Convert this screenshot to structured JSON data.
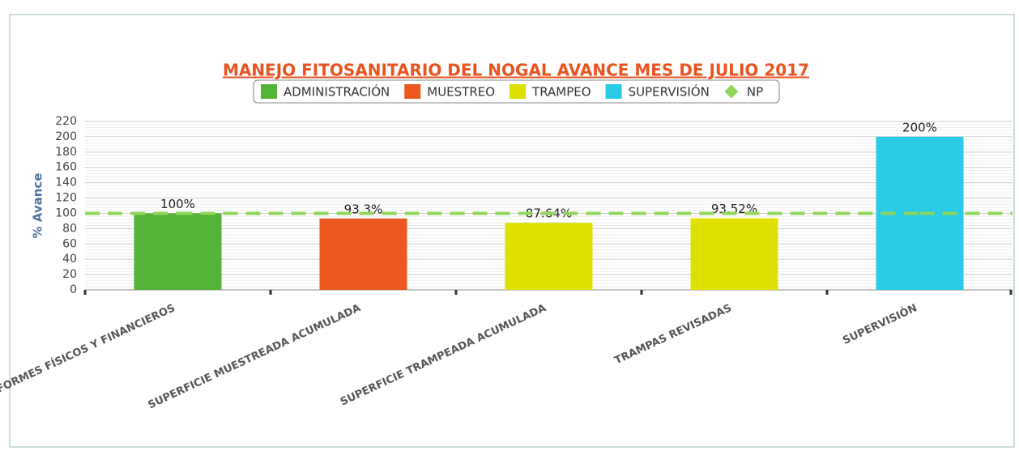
{
  "chart_data": {
    "type": "bar",
    "title": "MANEJO FITOSANITARIO DEL NOGAL AVANCE MES DE JULIO 2017",
    "y_label": "% Avance",
    "categories": [
      "INFORMES FÍSICOS Y FINANCIEROS",
      "SUPERFICIE MUESTREADA ACUMULADA",
      "SUPERFICIE TRAMPEADA ACUMULADA",
      "TRAMPAS REVISADAS",
      "SUPERVISIÓN"
    ],
    "series": [
      {
        "name": "ADMINISTRACIÓN",
        "color": "#52b334",
        "values": [
          100,
          null,
          null,
          null,
          null
        ],
        "value_labels": [
          "100%",
          null,
          null,
          null,
          null
        ]
      },
      {
        "name": "MUESTREO",
        "color": "#ea581f",
        "values": [
          null,
          93.3,
          null,
          null,
          null
        ],
        "value_labels": [
          null,
          "93.3%",
          null,
          null,
          null
        ]
      },
      {
        "name": "TRAMPEO",
        "color": "#dfe000",
        "values": [
          null,
          null,
          87.64,
          93.52,
          null
        ],
        "value_labels": [
          null,
          null,
          "87.64%",
          "93.52%",
          null
        ]
      },
      {
        "name": "SUPERVISIÓN",
        "color": "#29cbe6",
        "values": [
          null,
          null,
          null,
          null,
          200
        ],
        "value_labels": [
          null,
          null,
          null,
          null,
          "200%"
        ]
      },
      {
        "name": "NP",
        "type": "line",
        "color": "#8fd65a",
        "values": [
          100,
          100,
          100,
          100,
          100
        ]
      }
    ],
    "ylim": [
      0,
      220
    ],
    "yticks": [
      0,
      20,
      40,
      60,
      80,
      100,
      120,
      140,
      160,
      180,
      200,
      220
    ],
    "grid": true,
    "legend": "top"
  }
}
